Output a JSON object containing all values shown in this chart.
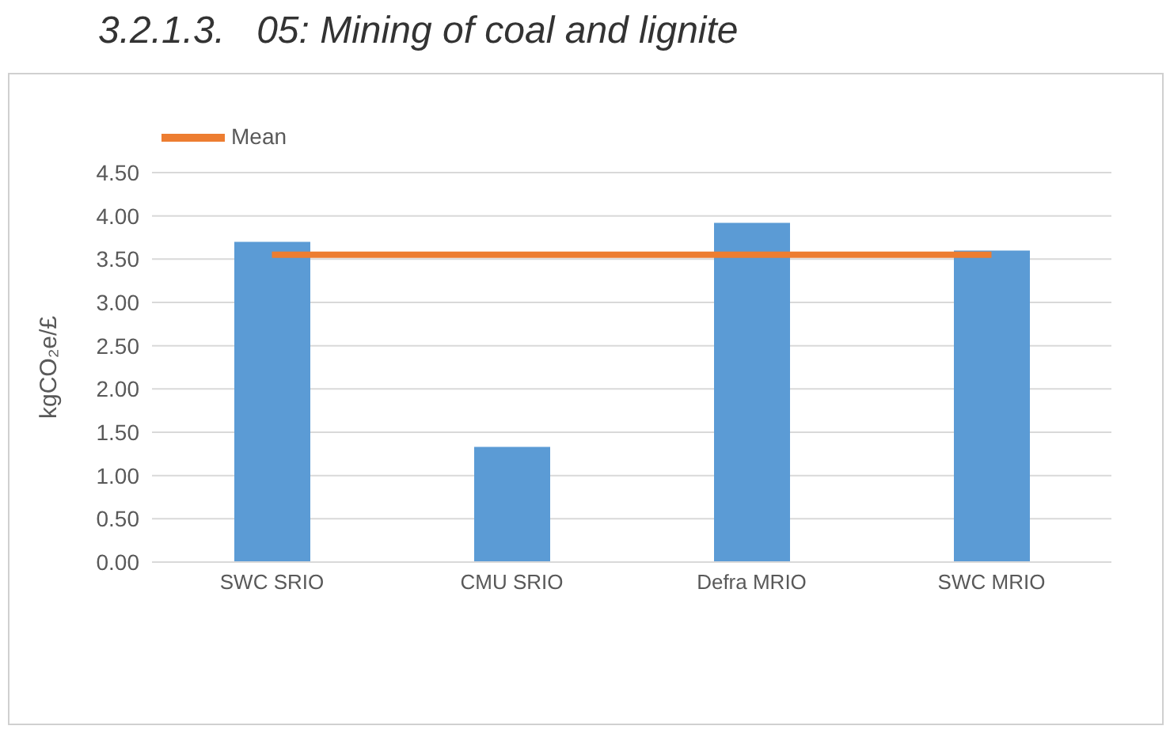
{
  "chart_data": {
    "type": "bar",
    "title": "3.2.1.3.   05: Mining of coal and lignite",
    "ylabel": "kgCO₂e/£",
    "categories": [
      "SWC SRIO",
      "CMU SRIO",
      "Defra MRIO",
      "SWC MRIO"
    ],
    "series": [
      {
        "color": "#5b9bd5",
        "values": [
          3.7,
          1.33,
          3.92,
          3.6
        ]
      },
      {
        "type": "line",
        "name": "Mean",
        "color": "#ed7d31",
        "values": [
          3.55,
          3.55,
          3.55,
          3.55
        ]
      }
    ],
    "ylim": [
      0,
      4.5
    ],
    "yticks": [
      {
        "value": 0,
        "label": "0.00"
      },
      {
        "value": 0.5,
        "label": "0.50"
      },
      {
        "value": 1,
        "label": "1.00"
      },
      {
        "value": 1.5,
        "label": "1.50"
      },
      {
        "value": 2,
        "label": "2.00"
      },
      {
        "value": 2.5,
        "label": "2.50"
      },
      {
        "value": 3,
        "label": "3.00"
      },
      {
        "value": 3.5,
        "label": "3.50"
      },
      {
        "value": 4,
        "label": "4.00"
      },
      {
        "value": 4.5,
        "label": "4.50"
      }
    ],
    "grid": "y",
    "legend": "top left",
    "marker": "none"
  }
}
